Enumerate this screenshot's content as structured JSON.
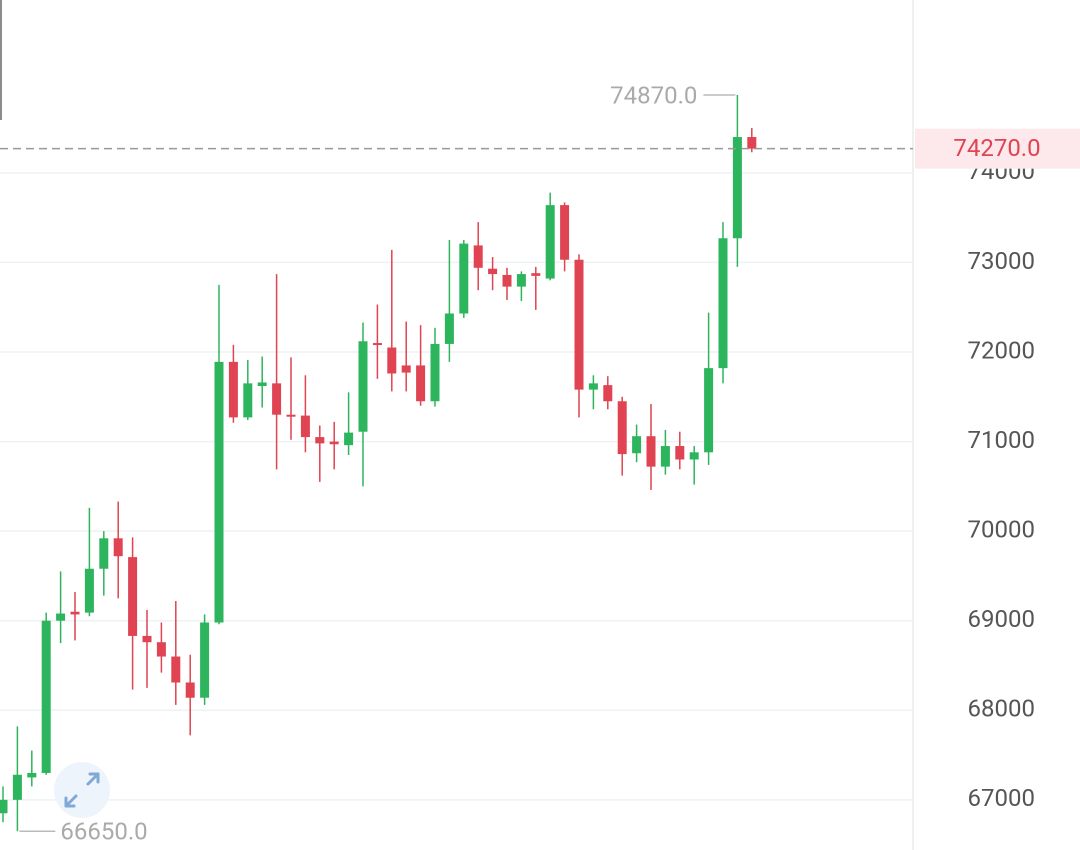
{
  "chart_data": {
    "type": "candlestick",
    "open": [
      66850,
      67000,
      67250,
      67300,
      69000,
      69100,
      69090,
      69580,
      69920,
      69710,
      68830,
      68760,
      68600,
      68310,
      68140,
      68980,
      71890,
      71270,
      71620,
      71650,
      71300,
      71290,
      71050,
      71000,
      70960,
      71110,
      72100,
      72050,
      71850,
      71850,
      71450,
      72090,
      72430,
      73190,
      72930,
      72860,
      72730,
      72880,
      72820,
      73640,
      73030,
      71580,
      71630,
      71450,
      70870,
      71060,
      70720,
      70950,
      70800,
      70880,
      71820,
      73270,
      74400
    ],
    "high": [
      67150,
      67820,
      67550,
      69090,
      69550,
      69320,
      70260,
      70000,
      70330,
      69930,
      69120,
      68980,
      69220,
      68620,
      69070,
      72750,
      72080,
      71910,
      71950,
      72870,
      71940,
      71740,
      71180,
      71220,
      71550,
      72330,
      72530,
      73140,
      72340,
      72300,
      72270,
      73250,
      73250,
      73450,
      73060,
      72940,
      72900,
      72950,
      73780,
      73670,
      73090,
      71740,
      71730,
      71500,
      71190,
      71420,
      71130,
      71110,
      70950,
      72440,
      73450,
      74870,
      74500
    ],
    "low": [
      66750,
      66650,
      67150,
      67280,
      68750,
      68780,
      69050,
      69280,
      69250,
      68230,
      68250,
      68420,
      68060,
      67720,
      68060,
      68960,
      71210,
      71240,
      71380,
      70690,
      71020,
      70880,
      70550,
      70690,
      70850,
      70500,
      71700,
      71560,
      71560,
      71400,
      71390,
      71890,
      72380,
      72690,
      72690,
      72580,
      72570,
      72470,
      72800,
      72900,
      71270,
      71360,
      71360,
      70620,
      70770,
      70460,
      70630,
      70690,
      70520,
      70740,
      71650,
      72950,
      74230
    ],
    "close": [
      67000,
      67280,
      67300,
      69000,
      69080,
      69070,
      69580,
      69920,
      69720,
      68830,
      68760,
      68600,
      68310,
      68140,
      68980,
      71890,
      71270,
      71650,
      71660,
      71300,
      71280,
      71050,
      70980,
      70970,
      71100,
      72120,
      72080,
      71760,
      71770,
      71450,
      72090,
      72430,
      73210,
      72940,
      72870,
      72730,
      72870,
      72850,
      73640,
      73030,
      71580,
      71650,
      71450,
      70860,
      71060,
      70720,
      70950,
      70800,
      70880,
      71820,
      73270,
      74400,
      74270
    ],
    "up_color": "#2db55d",
    "down_color": "#e04351",
    "ylim": [
      66440,
      75930
    ],
    "yticks": [
      67000,
      68000,
      69000,
      70000,
      71000,
      72000,
      73000,
      74000
    ],
    "grid": true,
    "high_marker": {
      "value": 74870,
      "label": "74870.0"
    },
    "low_marker": {
      "value": 66650,
      "label": "66650.0"
    },
    "last_price": {
      "value": 74270,
      "label": "74270.0"
    }
  }
}
